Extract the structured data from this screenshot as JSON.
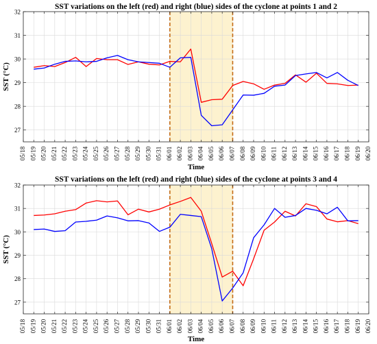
{
  "chart_data": [
    {
      "type": "line",
      "title": "SST variations on the left (red) and right (blue) sides of the cyclone at points 1 and 2",
      "xlabel": "Time",
      "ylabel": "SST (°C)",
      "ylim": [
        26.5,
        32
      ],
      "yticks": [
        27,
        28,
        29,
        30,
        31,
        32
      ],
      "x": [
        "05/18",
        "05/19",
        "05/20",
        "05/21",
        "05/22",
        "05/23",
        "05/24",
        "05/25",
        "05/26",
        "05/27",
        "05/28",
        "05/29",
        "05/30",
        "05/31",
        "06/01",
        "06/02",
        "06/03",
        "06/04",
        "06/05",
        "06/06",
        "06/07",
        "06/08",
        "06/09",
        "06/10",
        "06/11",
        "06/12",
        "06/13",
        "06/14",
        "06/15",
        "06/16",
        "06/17",
        "06/18",
        "06/19",
        "06/20"
      ],
      "grid": true,
      "highlight": {
        "from": "06/01",
        "to": "06/07",
        "color": "#fdf2cf",
        "edge_color": "#c46b15"
      },
      "series": [
        {
          "color": "#ff0000",
          "x": [
            "05/19",
            "05/20",
            "05/21",
            "05/22",
            "05/23",
            "05/24",
            "05/25",
            "05/26",
            "05/27",
            "05/28",
            "05/29",
            "05/30",
            "05/31",
            "06/01",
            "06/02",
            "06/03",
            "06/04",
            "06/05",
            "06/06",
            "06/07",
            "06/08",
            "06/09",
            "06/10",
            "06/11",
            "06/12",
            "06/13",
            "06/14",
            "06/15",
            "06/16",
            "06/17",
            "06/18",
            "06/19"
          ],
          "values": [
            29.65,
            29.72,
            29.68,
            29.85,
            30.07,
            29.68,
            30.02,
            29.97,
            29.97,
            29.77,
            29.88,
            29.78,
            29.75,
            29.9,
            29.88,
            30.42,
            28.17,
            28.28,
            28.3,
            28.88,
            29.05,
            28.95,
            28.72,
            28.9,
            28.97,
            29.33,
            29.02,
            29.4,
            28.97,
            28.95,
            28.88,
            28.9
          ]
        },
        {
          "color": "#0000ff",
          "x": [
            "05/19",
            "05/20",
            "05/21",
            "05/22",
            "05/23",
            "05/24",
            "05/25",
            "05/26",
            "05/27",
            "05/28",
            "05/29",
            "05/30",
            "05/31",
            "06/01",
            "06/02",
            "06/03",
            "06/04",
            "06/05",
            "06/06",
            "06/07",
            "06/08",
            "06/09",
            "06/10",
            "06/11",
            "06/12",
            "06/13",
            "06/14",
            "06/15",
            "06/16",
            "06/17",
            "06/18",
            "06/19"
          ],
          "values": [
            29.57,
            29.62,
            29.78,
            29.9,
            29.92,
            29.88,
            29.9,
            30.05,
            30.15,
            29.97,
            29.88,
            29.85,
            29.82,
            29.65,
            30.05,
            30.07,
            27.62,
            27.18,
            27.22,
            27.85,
            28.48,
            28.47,
            28.55,
            28.85,
            28.9,
            29.3,
            29.37,
            29.43,
            29.2,
            29.43,
            29.1,
            28.88
          ]
        }
      ]
    },
    {
      "type": "line",
      "title": "SST variations on the left (red) and right (blue) sides of the cyclone at points 3 and 4",
      "xlabel": "Time",
      "ylabel": "SST (°C)",
      "ylim": [
        26.5,
        32
      ],
      "yticks": [
        27,
        28,
        29,
        30,
        31,
        32
      ],
      "x": [
        "05/18",
        "05/19",
        "05/20",
        "05/21",
        "05/22",
        "05/23",
        "05/24",
        "05/25",
        "05/26",
        "05/27",
        "05/28",
        "05/29",
        "05/30",
        "05/31",
        "06/01",
        "06/02",
        "06/03",
        "06/04",
        "06/05",
        "06/06",
        "06/07",
        "06/08",
        "06/09",
        "06/10",
        "06/11",
        "06/12",
        "06/13",
        "06/14",
        "06/15",
        "06/16",
        "06/17",
        "06/18",
        "06/19",
        "06/20"
      ],
      "grid": true,
      "highlight": {
        "from": "06/01",
        "to": "06/07",
        "color": "#fdf2cf",
        "edge_color": "#c46b15"
      },
      "series": [
        {
          "color": "#ff0000",
          "x": [
            "05/19",
            "05/20",
            "05/21",
            "05/22",
            "05/23",
            "05/24",
            "05/25",
            "05/26",
            "05/27",
            "05/28",
            "05/29",
            "05/30",
            "05/31",
            "06/01",
            "06/02",
            "06/03",
            "06/04",
            "06/05",
            "06/06",
            "06/07",
            "06/08",
            "06/09",
            "06/10",
            "06/11",
            "06/12",
            "06/13",
            "06/14",
            "06/15",
            "06/16",
            "06/17",
            "06/18",
            "06/19"
          ],
          "values": [
            30.7,
            30.72,
            30.77,
            30.88,
            30.95,
            31.23,
            31.33,
            31.28,
            31.32,
            30.73,
            30.97,
            30.85,
            30.97,
            31.15,
            31.3,
            31.47,
            30.88,
            29.5,
            28.07,
            28.32,
            27.7,
            28.85,
            30.07,
            30.42,
            30.88,
            30.68,
            31.2,
            31.08,
            30.55,
            30.43,
            30.48,
            30.35
          ]
        },
        {
          "color": "#0000ff",
          "x": [
            "05/19",
            "05/20",
            "05/21",
            "05/22",
            "05/23",
            "05/24",
            "05/25",
            "05/26",
            "05/27",
            "05/28",
            "05/29",
            "05/30",
            "05/31",
            "06/01",
            "06/02",
            "06/03",
            "06/04",
            "06/05",
            "06/06",
            "06/07",
            "06/08",
            "06/09",
            "06/10",
            "06/11",
            "06/12",
            "06/13",
            "06/14",
            "06/15",
            "06/16",
            "06/17",
            "06/18",
            "06/19"
          ],
          "values": [
            30.1,
            30.12,
            30.02,
            30.05,
            30.42,
            30.45,
            30.5,
            30.68,
            30.6,
            30.47,
            30.48,
            30.38,
            30.02,
            30.2,
            30.75,
            30.7,
            30.65,
            29.28,
            27.05,
            27.6,
            28.25,
            29.75,
            30.3,
            31.0,
            30.62,
            30.7,
            31.0,
            30.92,
            30.77,
            31.05,
            30.47,
            30.48
          ]
        }
      ]
    }
  ]
}
